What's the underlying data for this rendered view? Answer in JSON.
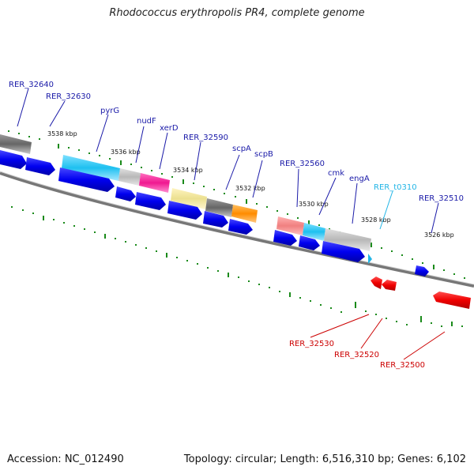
{
  "title": "Rhodococcus erythropolis PR4, complete genome",
  "footer": {
    "accession": "Accession: NC_012490",
    "summary": "Topology: circular; Length: 6,516,310 bp; Genes: 6,102"
  },
  "colors": {
    "backbone": "#777777",
    "forward_label": "#1a1aa8",
    "reverse_label": "#cc0000",
    "rna_label": "#22b5e6",
    "cds_forward": "#0000f0",
    "cds_reverse": "#f00000",
    "tick": "#1a8a1a"
  },
  "scale_labels": [
    "3538 kbp",
    "3536 kbp",
    "3534 kbp",
    "3532 kbp",
    "3530 kbp",
    "3528 kbp",
    "3526 kbp"
  ],
  "gene_labels": {
    "forward": [
      "RER_32640",
      "RER_32630",
      "pyrG",
      "nudF",
      "xerD",
      "RER_32590",
      "scpA",
      "scpB",
      "RER_32560",
      "cmk",
      "engA",
      "RER_32510"
    ],
    "rna": [
      "RER_t0310"
    ],
    "reverse": [
      "RER_32530",
      "RER_32520",
      "RER_32500"
    ]
  }
}
